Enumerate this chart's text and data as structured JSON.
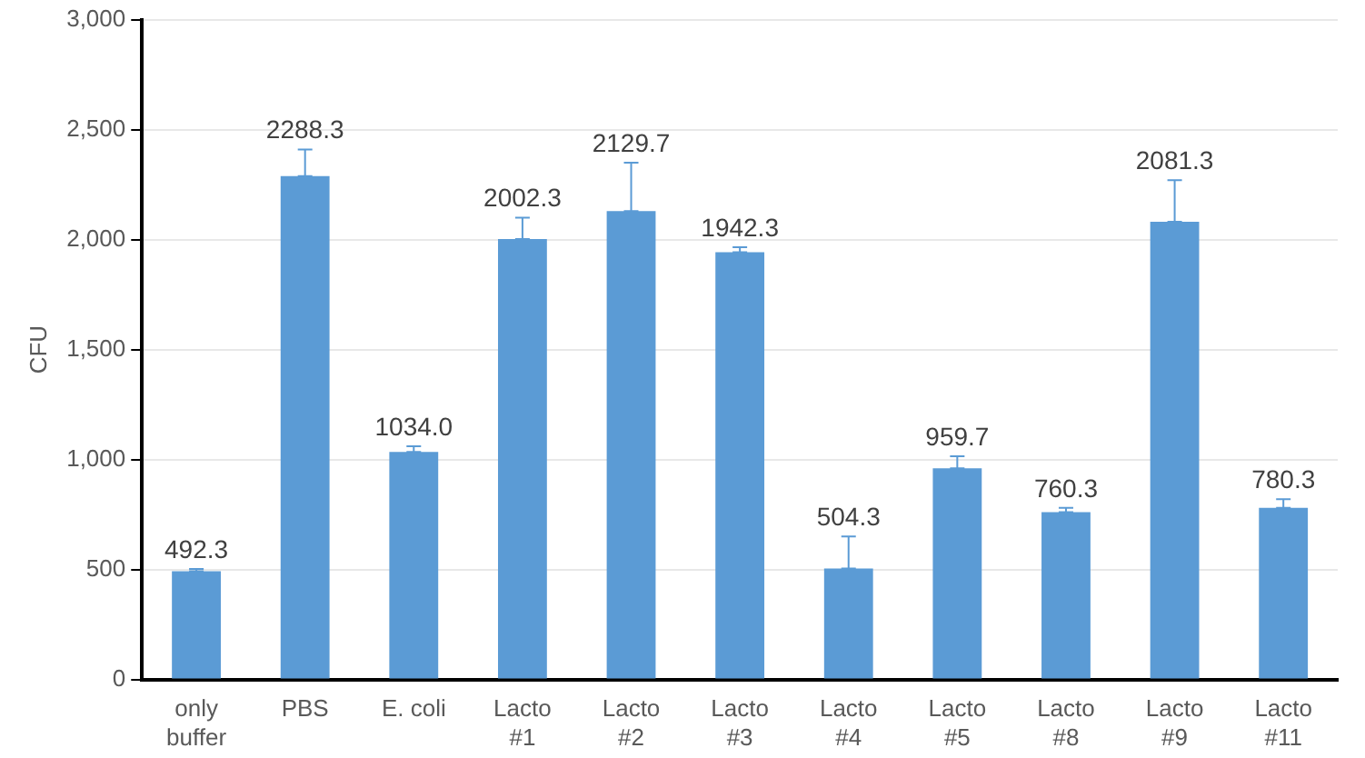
{
  "chart_data": {
    "type": "bar",
    "ylabel": "CFU",
    "categories": [
      "only\nbuffer",
      "PBS",
      "E. coli",
      "Lacto\n#1",
      "Lacto\n#2",
      "Lacto\n#3",
      "Lacto\n#4",
      "Lacto\n#5",
      "Lacto\n#8",
      "Lacto\n#9",
      "Lacto\n#11"
    ],
    "values": [
      492.3,
      2288.3,
      1034.0,
      2002.3,
      2129.7,
      1942.3,
      504.3,
      959.7,
      760.3,
      2081.3,
      780.3
    ],
    "value_labels": [
      "492.3",
      "2288.3",
      "1034.0",
      "2002.3",
      "2129.7",
      "1942.3",
      "504.3",
      "959.7",
      "760.3",
      "2081.3",
      "780.3"
    ],
    "errors": [
      [
        492.3,
        502
      ],
      [
        2288.3,
        2410
      ],
      [
        1034.0,
        1060
      ],
      [
        2002.3,
        2100
      ],
      [
        2129.7,
        2350
      ],
      [
        1942.3,
        1965
      ],
      [
        504.3,
        650
      ],
      [
        959.7,
        1015
      ],
      [
        760.3,
        780
      ],
      [
        2081.3,
        2270
      ],
      [
        780.3,
        820
      ]
    ],
    "color": "#5b9bd5",
    "ylim": [
      0,
      3000
    ],
    "yticks": [
      0,
      500,
      {
        "value": 1000,
        "label": "1,000"
      },
      {
        "value": 1500,
        "label": "1,500"
      },
      {
        "value": 2000,
        "label": "2,000"
      },
      {
        "value": 2500,
        "label": "2,500"
      },
      {
        "value": 3000,
        "label": "3,000"
      }
    ],
    "grid": "y"
  }
}
